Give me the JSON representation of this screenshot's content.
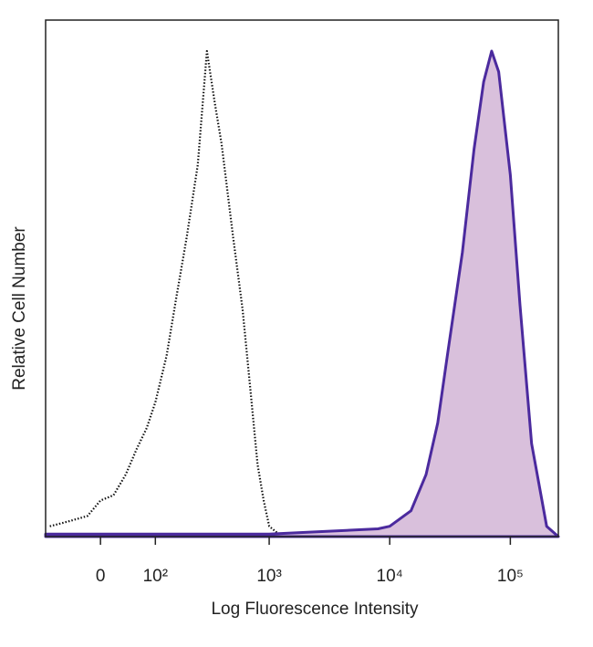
{
  "chart_data": {
    "type": "line",
    "xlabel": "Log Fluorescence Intensity",
    "ylabel": "Relative Cell Number",
    "xscale": "biexponential",
    "xlim": [
      -100,
      250000
    ],
    "ylim": [
      0,
      100
    ],
    "xticks": [
      {
        "value": 0,
        "label": "0"
      },
      {
        "value": 100,
        "label": "10²"
      },
      {
        "value": 1000,
        "label": "10³"
      },
      {
        "value": 10000,
        "label": "10⁴"
      },
      {
        "value": 100000,
        "label": "10⁵"
      }
    ],
    "series": [
      {
        "color": "#111111",
        "style": "dotted",
        "x": [
          -90,
          -50,
          -20,
          0,
          20,
          40,
          60,
          80,
          100,
          130,
          160,
          200,
          250,
          300,
          350,
          400,
          500,
          600,
          700,
          800,
          900,
          1000,
          1200,
          2000
        ],
        "values": [
          2,
          3,
          4,
          7,
          8,
          12,
          17,
          21,
          26,
          35,
          46,
          58,
          72,
          94,
          84,
          76,
          58,
          44,
          28,
          14,
          7,
          2,
          0.5,
          0
        ]
      },
      {
        "color": "#4b2a9e",
        "fill": "#d9c0dc",
        "style": "solid",
        "x": [
          -100,
          1000,
          3000,
          8000,
          10000,
          15000,
          20000,
          25000,
          30000,
          40000,
          50000,
          60000,
          70000,
          80000,
          100000,
          120000,
          150000,
          200000,
          250000
        ],
        "values": [
          0.5,
          0.5,
          1,
          1.5,
          2,
          5,
          12,
          22,
          35,
          55,
          75,
          88,
          94,
          90,
          70,
          45,
          18,
          2,
          0
        ]
      }
    ]
  }
}
